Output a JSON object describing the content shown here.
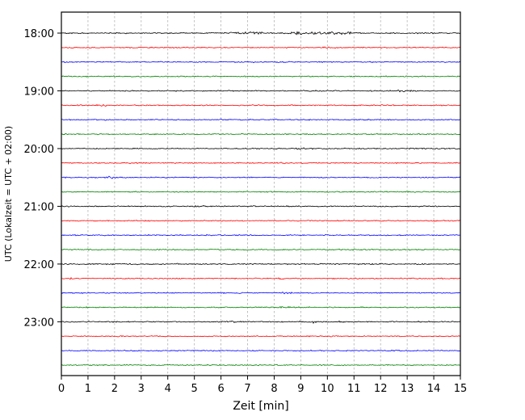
{
  "chart_data": {
    "type": "line",
    "subtype": "helicorder-seismogram",
    "title": "",
    "xlabel": "Zeit  [min]",
    "ylabel": "UTC (Lokalzeit = UTC + 02:00)",
    "xlim": [
      0,
      15
    ],
    "x_ticks": [
      0,
      1,
      2,
      3,
      4,
      5,
      6,
      7,
      8,
      9,
      10,
      11,
      12,
      13,
      14,
      15
    ],
    "grid": "vertical-dashed",
    "grid_color": "#b0b0b0",
    "trace_colors_cycle": [
      "#000000",
      "#ff0000",
      "#0000ff",
      "#008000"
    ],
    "minutes_per_line": 15,
    "traces": [
      {
        "label": "18:00",
        "color": "#000000",
        "amp": 1.0,
        "bursts": [
          {
            "start": 6.3,
            "end": 7.6,
            "amp": 2.0
          },
          {
            "start": 8.6,
            "end": 10.9,
            "amp": 2.4
          }
        ]
      },
      {
        "label": "",
        "color": "#ff0000",
        "amp": 0.9,
        "bursts": [
          {
            "start": 9.8,
            "end": 10.3,
            "amp": 1.8
          }
        ]
      },
      {
        "label": "",
        "color": "#0000ff",
        "amp": 0.9,
        "bursts": []
      },
      {
        "label": "",
        "color": "#008000",
        "amp": 0.9,
        "bursts": []
      },
      {
        "label": "19:00",
        "color": "#000000",
        "amp": 1.0,
        "bursts": [
          {
            "start": 12.6,
            "end": 13.4,
            "amp": 1.6
          }
        ]
      },
      {
        "label": "",
        "color": "#ff0000",
        "amp": 0.9,
        "bursts": [
          {
            "start": 1.3,
            "end": 1.7,
            "amp": 1.5
          }
        ]
      },
      {
        "label": "",
        "color": "#0000ff",
        "amp": 0.9,
        "bursts": []
      },
      {
        "label": "",
        "color": "#008000",
        "amp": 0.9,
        "bursts": []
      },
      {
        "label": "20:00",
        "color": "#000000",
        "amp": 1.0,
        "bursts": [
          {
            "start": 8.8,
            "end": 9.2,
            "amp": 1.5
          }
        ]
      },
      {
        "label": "",
        "color": "#ff0000",
        "amp": 0.9,
        "bursts": [
          {
            "start": 8.2,
            "end": 8.6,
            "amp": 1.5
          }
        ]
      },
      {
        "label": "",
        "color": "#0000ff",
        "amp": 0.9,
        "bursts": [
          {
            "start": 1.7,
            "end": 2.3,
            "amp": 2.2
          }
        ]
      },
      {
        "label": "",
        "color": "#008000",
        "amp": 0.9,
        "bursts": []
      },
      {
        "label": "21:00",
        "color": "#000000",
        "amp": 1.0,
        "bursts": [
          {
            "start": 5.0,
            "end": 5.6,
            "amp": 1.6
          }
        ]
      },
      {
        "label": "",
        "color": "#ff0000",
        "amp": 0.9,
        "bursts": []
      },
      {
        "label": "",
        "color": "#0000ff",
        "amp": 0.9,
        "bursts": []
      },
      {
        "label": "",
        "color": "#008000",
        "amp": 0.9,
        "bursts": []
      },
      {
        "label": "22:00",
        "color": "#000000",
        "amp": 1.0,
        "bursts": [
          {
            "start": 4.0,
            "end": 4.4,
            "amp": 1.5
          }
        ]
      },
      {
        "label": "",
        "color": "#ff0000",
        "amp": 0.9,
        "bursts": [
          {
            "start": 0.3,
            "end": 0.7,
            "amp": 1.6
          },
          {
            "start": 8.0,
            "end": 8.4,
            "amp": 1.5
          }
        ]
      },
      {
        "label": "",
        "color": "#0000ff",
        "amp": 0.9,
        "bursts": [
          {
            "start": 8.3,
            "end": 8.7,
            "amp": 1.5
          }
        ]
      },
      {
        "label": "",
        "color": "#008000",
        "amp": 0.9,
        "bursts": [
          {
            "start": 8.2,
            "end": 8.6,
            "amp": 1.4
          }
        ]
      },
      {
        "label": "23:00",
        "color": "#000000",
        "amp": 1.0,
        "bursts": [
          {
            "start": 6.2,
            "end": 6.5,
            "amp": 1.8
          },
          {
            "start": 9.2,
            "end": 9.6,
            "amp": 2.0
          },
          {
            "start": 10.4,
            "end": 10.7,
            "amp": 1.6
          }
        ]
      },
      {
        "label": "",
        "color": "#ff0000",
        "amp": 0.9,
        "bursts": []
      },
      {
        "label": "",
        "color": "#0000ff",
        "amp": 0.9,
        "bursts": []
      },
      {
        "label": "",
        "color": "#008000",
        "amp": 0.9,
        "bursts": []
      }
    ]
  }
}
